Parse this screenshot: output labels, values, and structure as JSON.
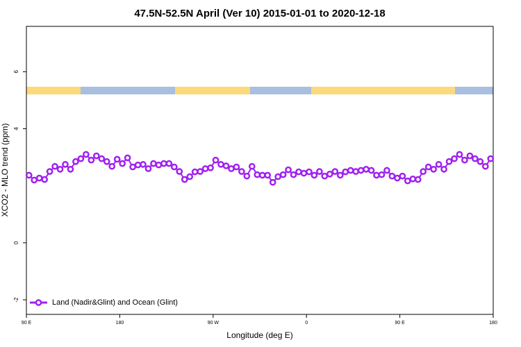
{
  "chart_data": {
    "type": "line",
    "title": "47.5N-52.5N April (Ver 10)   2015-01-01 to 2020-12-18",
    "x_label": "Longitude (deg E)",
    "y_label": "XCO2 - MLO trend (ppm)",
    "x": [
      92.5,
      97.5,
      102.5,
      107.5,
      112.5,
      117.5,
      122.5,
      127.5,
      132.5,
      137.5,
      142.5,
      147.5,
      152.5,
      157.5,
      162.5,
      167.5,
      172.5,
      177.5,
      182.5,
      187.5,
      192.5,
      197.5,
      202.5,
      207.5,
      212.5,
      217.5,
      222.5,
      227.5,
      232.5,
      237.5,
      242.5,
      247.5,
      252.5,
      257.5,
      262.5,
      267.5,
      272.5,
      277.5,
      282.5,
      287.5,
      292.5,
      297.5,
      302.5,
      307.5,
      312.5,
      317.5,
      322.5,
      327.5,
      332.5,
      337.5,
      342.5,
      347.5,
      352.5,
      357.5,
      362.5,
      367.5,
      372.5,
      377.5,
      382.5,
      387.5,
      392.5,
      397.5,
      402.5,
      407.5,
      412.5,
      417.5,
      422.5,
      427.5,
      432.5,
      437.5,
      442.5,
      447.5,
      452.5,
      457.5,
      462.5,
      467.5,
      472.5,
      477.5,
      482.5,
      487.5,
      492.5,
      497.5,
      502.5,
      507.5,
      512.5,
      517.5,
      522.5,
      527.5,
      532.5,
      537.5
    ],
    "series": [
      {
        "name": "Land (Nadir&Glint) and Ocean (Glint)",
        "color": "#a020f0",
        "values": [
          2.37,
          2.2,
          2.27,
          2.22,
          2.5,
          2.68,
          2.58,
          2.75,
          2.58,
          2.85,
          2.95,
          3.1,
          2.9,
          3.05,
          2.95,
          2.85,
          2.68,
          2.93,
          2.78,
          2.98,
          2.66,
          2.73,
          2.75,
          2.6,
          2.78,
          2.73,
          2.78,
          2.78,
          2.66,
          2.5,
          2.22,
          2.32,
          2.49,
          2.5,
          2.6,
          2.63,
          2.9,
          2.75,
          2.7,
          2.6,
          2.66,
          2.5,
          2.34,
          2.68,
          2.39,
          2.37,
          2.37,
          2.12,
          2.32,
          2.39,
          2.56,
          2.39,
          2.49,
          2.44,
          2.49,
          2.37,
          2.5,
          2.34,
          2.41,
          2.5,
          2.37,
          2.49,
          2.54,
          2.5,
          2.54,
          2.58,
          2.54,
          2.37,
          2.39,
          2.54,
          2.34,
          2.27,
          2.34,
          2.17,
          2.24,
          2.22,
          2.5,
          2.66,
          2.58,
          2.75,
          2.58,
          2.85,
          2.95,
          3.1,
          2.9,
          3.05,
          2.95,
          2.85,
          2.68,
          2.95
        ]
      }
    ],
    "xlim": [
      90,
      540
    ],
    "xticks": [
      {
        "value": 90,
        "label": "90 E"
      },
      180,
      {
        "value": 270,
        "label": "90 W"
      },
      {
        "value": 360,
        "label": "0"
      },
      {
        "value": 450,
        "label": "90 E"
      },
      {
        "value": 540,
        "label": "180"
      }
    ],
    "ylim": [
      -2.51,
      7.59
    ],
    "yticks": [
      -2,
      0,
      4,
      6
    ],
    "legend": "bottom-left"
  }
}
